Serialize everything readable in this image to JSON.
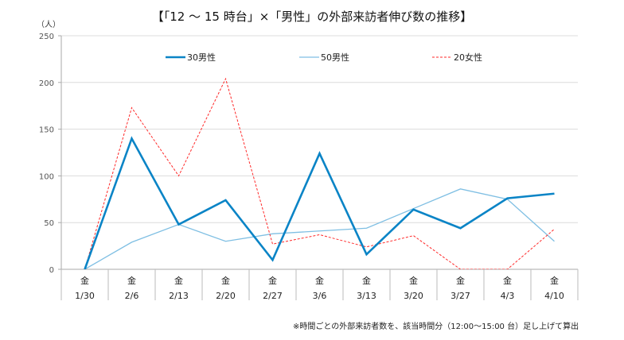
{
  "chart_data": {
    "type": "line",
    "title": "【「12 ～ 15 時台」×「男性」の外部来訪者伸び数の推移】",
    "ylabel": "（人）",
    "ylim": [
      0,
      250
    ],
    "yticks": [
      0,
      50,
      100,
      150,
      200,
      250
    ],
    "grid": true,
    "legend_position": "top",
    "weekday_labels": [
      "金",
      "金",
      "金",
      "金",
      "金",
      "金",
      "金",
      "金",
      "金",
      "金",
      "金"
    ],
    "categories": [
      "1/30",
      "2/6",
      "2/13",
      "2/20",
      "2/27",
      "3/6",
      "3/13",
      "3/20",
      "3/27",
      "4/3",
      "4/10"
    ],
    "series": [
      {
        "name": "30男性",
        "color": "#0a84c6",
        "style": "solid-thick",
        "values": [
          0,
          140,
          48,
          74,
          10,
          124,
          16,
          64,
          44,
          76,
          81
        ]
      },
      {
        "name": "50男性",
        "color": "#7fbfe3",
        "style": "solid",
        "values": [
          0,
          29,
          48,
          30,
          38,
          41,
          44,
          65,
          86,
          75,
          30
        ]
      },
      {
        "name": "20女性",
        "color": "#ff2a2a",
        "style": "dashed",
        "values": [
          0,
          173,
          100,
          204,
          27,
          37,
          24,
          36,
          0,
          0,
          43
        ]
      }
    ],
    "footnote": "※時間ごとの外部来訪者数を、該当時間分（12:00～15:00 台）足し上げて算出"
  }
}
